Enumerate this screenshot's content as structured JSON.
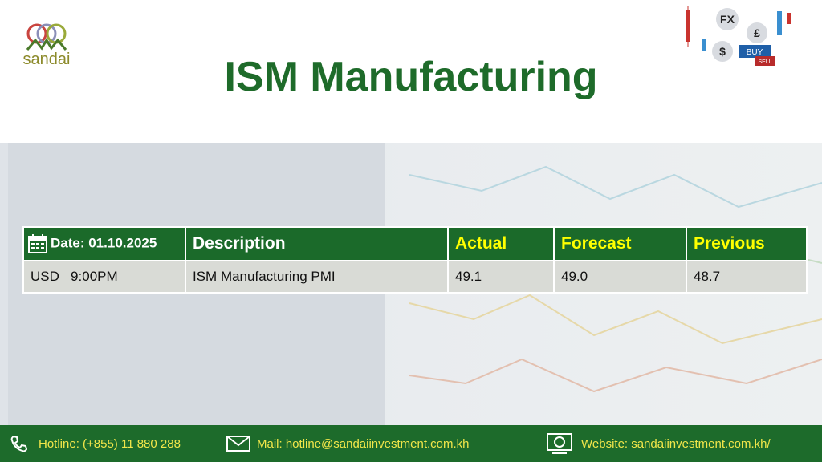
{
  "logo": {
    "text": "sandai"
  },
  "title": "ISM Manufacturing",
  "fx_icon": {
    "fx": "FX",
    "buy": "BUY",
    "sell": "SELL"
  },
  "table": {
    "header": [
      "Date: 01.10.2025",
      "Description",
      "Actual",
      "Forecast",
      "Previous"
    ],
    "rows": [
      [
        "USD   9:00PM",
        "ISM Manufacturing PMI",
        "49.1",
        "49.0",
        "48.7"
      ]
    ]
  },
  "footer": {
    "hotline": "Hotline: (+855) 11 880 288",
    "mail": "Mail: hotline@sandaiinvestment.com.kh",
    "website": "Website: sandaiinvestment.com.kh/"
  }
}
